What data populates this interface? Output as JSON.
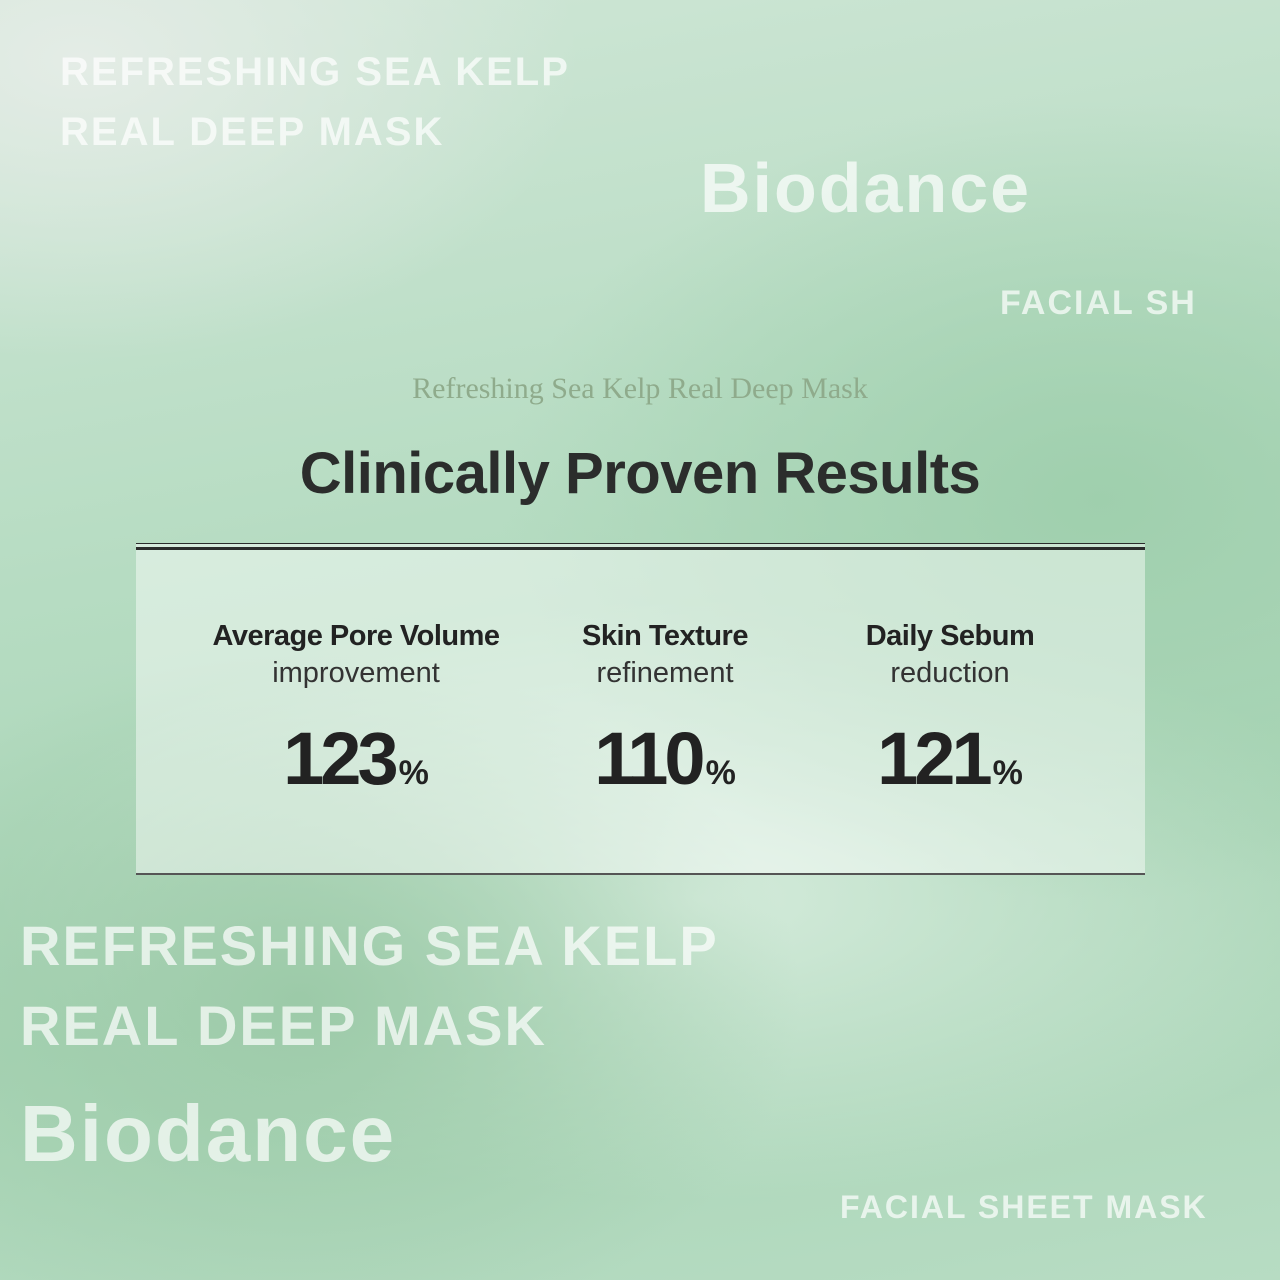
{
  "background_text": [
    "REFRESHING SEA KELP",
    "REAL DEEP MASK",
    "Biodance",
    "REFRESHING SEA KELP",
    "REAL DEEP MASK",
    "Biodance",
    "FACIAL SHEET MASK",
    "FACIAL SH"
  ],
  "subtitle": "Refreshing Sea Kelp Real Deep Mask",
  "title": "Clinically Proven Results",
  "stats": [
    {
      "label": "Average Pore Volume",
      "sub": "improvement",
      "value": "123",
      "unit": "%"
    },
    {
      "label": "Skin Texture",
      "sub": "refinement",
      "value": "110",
      "unit": "%"
    },
    {
      "label": "Daily Sebum",
      "sub": "reduction",
      "value": "121",
      "unit": "%"
    }
  ]
}
